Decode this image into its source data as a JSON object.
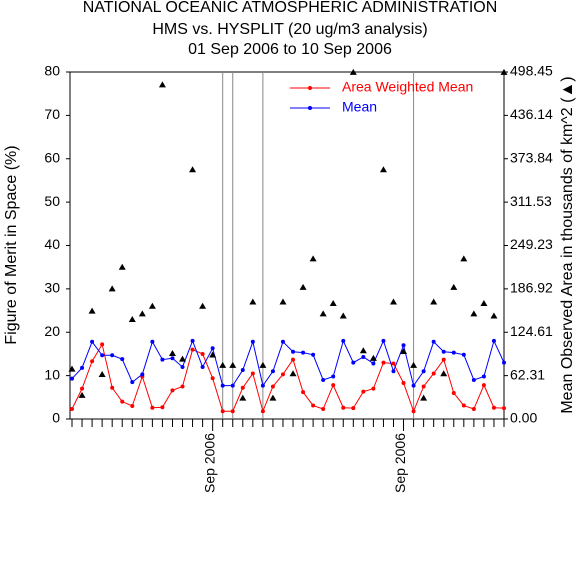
{
  "chart_data": {
    "type": "line",
    "title": [
      "NATIONAL OCEANIC ATMOSPHERIC ADMINISTRATION",
      "HMS vs. HYSPLIT (20 ug/m3 analysis)",
      "01 Sep 2006 to 10 Sep 2006"
    ],
    "y_label": "Figure of Merit in Space (%)",
    "y2_label": "Mean Observed Area in thousands of km^2 (▲)",
    "categories": [
      null,
      null,
      null,
      null,
      null,
      null,
      null,
      null,
      null,
      null,
      null,
      null,
      null,
      null,
      "Sep 2006",
      null,
      null,
      null,
      null,
      null,
      null,
      null,
      null,
      null,
      null,
      null,
      null,
      null,
      null,
      null,
      null,
      null,
      null,
      "Sep 2006",
      null,
      null,
      null,
      null,
      null,
      null,
      null,
      null,
      null,
      null
    ],
    "ylim": [
      0,
      80
    ],
    "yticks": [
      0,
      10,
      20,
      30,
      40,
      50,
      60,
      70,
      80
    ],
    "y2lim": [
      0,
      498.45
    ],
    "y2ticks": [
      {
        "value": 0,
        "label": "0.00"
      },
      62.31,
      124.61,
      186.92,
      249.23,
      311.53,
      373.84,
      436.14,
      498.45
    ],
    "series": [
      {
        "name": "Area Weighted Mean",
        "color": "#ff0000",
        "values": [
          2.3,
          7,
          13.3,
          17.2,
          7.2,
          4,
          3,
          9.8,
          2.6,
          2.7,
          6.6,
          7.5,
          16,
          15,
          9.4,
          1.8,
          1.8,
          7.2,
          10.5,
          1.8,
          7.5,
          10.3,
          13.7,
          6.2,
          3.1,
          2.3,
          7.8,
          2.6,
          2.5,
          6.3,
          7,
          13,
          12.8,
          8.3,
          1.8,
          7.5,
          10.5,
          13.7,
          6,
          3.1,
          2.3,
          7.8,
          2.6,
          2.5
        ]
      },
      {
        "name": "Mean",
        "color": "#0000ff",
        "values": [
          9.3,
          11.8,
          17.8,
          14.7,
          14.7,
          13.8,
          8.5,
          10.3,
          17.8,
          13.7,
          14,
          12,
          18,
          12,
          16.3,
          7.7,
          7.7,
          11.3,
          17.8,
          7.7,
          11,
          17.8,
          15.5,
          15.3,
          14.8,
          9,
          9.8,
          18,
          13,
          14.3,
          12.8,
          18,
          11,
          17,
          7.7,
          11,
          17.8,
          15.5,
          15.3,
          14.8,
          9,
          9.8,
          18,
          13
        ]
      },
      {
        "color": "#000000",
        "axis": "y2",
        "marker": "triangle",
        "values": [
          71.7,
          34,
          155,
          64,
          187,
          218,
          143,
          151,
          162,
          480,
          94,
          86,
          358,
          162,
          92,
          77,
          77,
          30,
          168,
          77,
          30,
          168,
          65,
          189,
          230,
          151,
          166,
          148,
          498,
          98,
          87,
          358,
          168,
          97,
          77,
          30,
          168,
          65,
          189,
          230,
          151,
          166,
          148,
          498
        ]
      }
    ]
  }
}
